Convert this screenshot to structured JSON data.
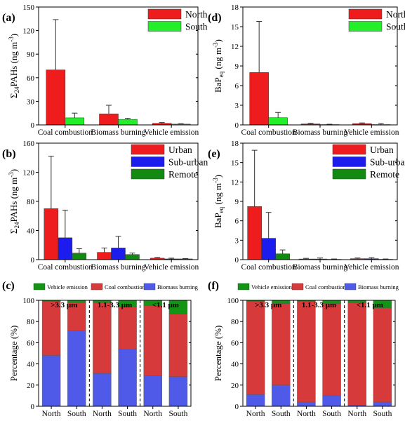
{
  "chart_data": [
    {
      "panel_label": "(a)",
      "type": "bar",
      "ylabel_base": "PAHs",
      "ylabel_unit": "(ng m",
      "ylabel_sup": "-3",
      "ylabel_close": ")",
      "ylabel_sub": "24",
      "ylim": [
        0,
        150
      ],
      "yticks": [
        "0",
        "30",
        "60",
        "90",
        "120",
        "150"
      ],
      "categories": [
        "Coal combustion",
        "Biomass burning",
        "Vehicle emission"
      ],
      "legend_position": "top-right",
      "series": [
        {
          "name": "North",
          "color": "#ee1c1c",
          "values": [
            70,
            14,
            2
          ],
          "errors": [
            64,
            11,
            1
          ]
        },
        {
          "name": "South",
          "color": "#22ee2a",
          "values": [
            9,
            7,
            1
          ],
          "errors": [
            6,
            1.5,
            0.5
          ]
        }
      ]
    },
    {
      "panel_label": "(d)",
      "type": "bar",
      "ylabel_base": "BaP",
      "ylabel_sub": "eq",
      "ylabel_unit": "(ng m",
      "ylabel_sup": "-3",
      "ylabel_close": ")",
      "ylim": [
        0,
        18
      ],
      "yticks": [
        "0",
        "3",
        "6",
        "9",
        "12",
        "15",
        "18"
      ],
      "categories": [
        "Coal combustion",
        "Biomass burning",
        "Vehicle emission"
      ],
      "legend_position": "top-right",
      "series": [
        {
          "name": "North",
          "color": "#ee1c1c",
          "values": [
            8.0,
            0.15,
            0.2
          ],
          "errors": [
            7.8,
            0.1,
            0.1
          ]
        },
        {
          "name": "South",
          "color": "#22ee2a",
          "values": [
            1.1,
            0.05,
            0.05
          ],
          "errors": [
            0.8,
            0.05,
            0.15
          ]
        }
      ]
    },
    {
      "panel_label": "(b)",
      "type": "bar",
      "ylabel_base": "PAHs",
      "ylabel_sub": "24",
      "ylabel_unit": "(ng m",
      "ylabel_sup": "-3",
      "ylabel_close": ")",
      "ylim": [
        0,
        160
      ],
      "yticks": [
        "0",
        "40",
        "80",
        "120",
        "160"
      ],
      "categories": [
        "Coal combustion",
        "Biomass burning",
        "Vehicle emission"
      ],
      "legend_position": "top-right",
      "series": [
        {
          "name": "Urban",
          "color": "#ee1c1c",
          "values": [
            70,
            10,
            2
          ],
          "errors": [
            72,
            6,
            1
          ]
        },
        {
          "name": "Sub-urban",
          "color": "#1c1cee",
          "values": [
            30,
            16,
            1
          ],
          "errors": [
            38,
            16,
            1
          ]
        },
        {
          "name": "Remote",
          "color": "#128a12",
          "values": [
            9,
            7,
            1
          ],
          "errors": [
            6,
            2,
            0.5
          ]
        }
      ]
    },
    {
      "panel_label": "(e)",
      "type": "bar",
      "ylabel_base": "BaP",
      "ylabel_sub": "eq",
      "ylabel_unit": "(ng m",
      "ylabel_sup": "-3",
      "ylabel_close": ")",
      "ylim": [
        0,
        18
      ],
      "yticks": [
        "0",
        "3",
        "6",
        "9",
        "12",
        "15",
        "18"
      ],
      "categories": [
        "Coal combustion",
        "Biomass burning",
        "Vehicle emission"
      ],
      "legend_position": "top-right",
      "series": [
        {
          "name": "Urban",
          "color": "#ee1c1c",
          "values": [
            8.2,
            0.1,
            0.15
          ],
          "errors": [
            8.7,
            0.1,
            0.1
          ]
        },
        {
          "name": "Sub-urban",
          "color": "#1c1cee",
          "values": [
            3.3,
            0.1,
            0.15
          ],
          "errors": [
            4.0,
            0.15,
            0.15
          ]
        },
        {
          "name": "Remote",
          "color": "#128a12",
          "values": [
            0.9,
            0.05,
            0.05
          ],
          "errors": [
            0.6,
            0.05,
            0.05
          ]
        }
      ]
    },
    {
      "panel_label": "(c)",
      "type": "bar",
      "stacked": true,
      "ylabel": "Percentage (%)",
      "ylim": [
        0,
        100
      ],
      "yticks": [
        "0",
        "20",
        "40",
        "60",
        "80",
        "100"
      ],
      "categories": [
        "North",
        "South",
        "North",
        "South",
        "North",
        "South"
      ],
      "groups": [
        ">3.3 μm",
        "1.1-3.3 μm",
        "<1.1 μm"
      ],
      "legend_position": "top",
      "series": [
        {
          "name": "Biomass burning",
          "color": "#4f5be8",
          "values": [
            48,
            71,
            31,
            54,
            29,
            28
          ]
        },
        {
          "name": "Coal combustion",
          "color": "#d63a3a",
          "values": [
            51,
            27,
            67,
            40,
            66,
            59
          ]
        },
        {
          "name": "Vehicle emission",
          "color": "#139413",
          "values": [
            1,
            2,
            2,
            6,
            5,
            13
          ]
        }
      ]
    },
    {
      "panel_label": "(f)",
      "type": "bar",
      "stacked": true,
      "ylabel": "Percentage (%)",
      "ylim": [
        0,
        100
      ],
      "yticks": [
        "0",
        "20",
        "40",
        "60",
        "80",
        "100"
      ],
      "categories": [
        "North",
        "South",
        "North",
        "South",
        "North",
        "South"
      ],
      "groups": [
        ">3.3 μm",
        "1.1-3.3 μm",
        "<1.1 μm"
      ],
      "legend_position": "top",
      "series": [
        {
          "name": "Biomass burning",
          "color": "#4f5be8",
          "values": [
            11,
            20,
            4,
            10,
            1,
            4
          ]
        },
        {
          "name": "Coal combustion",
          "color": "#d63a3a",
          "values": [
            88,
            77,
            95,
            87,
            97,
            89
          ]
        },
        {
          "name": "Vehicle emission",
          "color": "#139413",
          "values": [
            1,
            3,
            1,
            3,
            2,
            7
          ]
        }
      ]
    }
  ]
}
